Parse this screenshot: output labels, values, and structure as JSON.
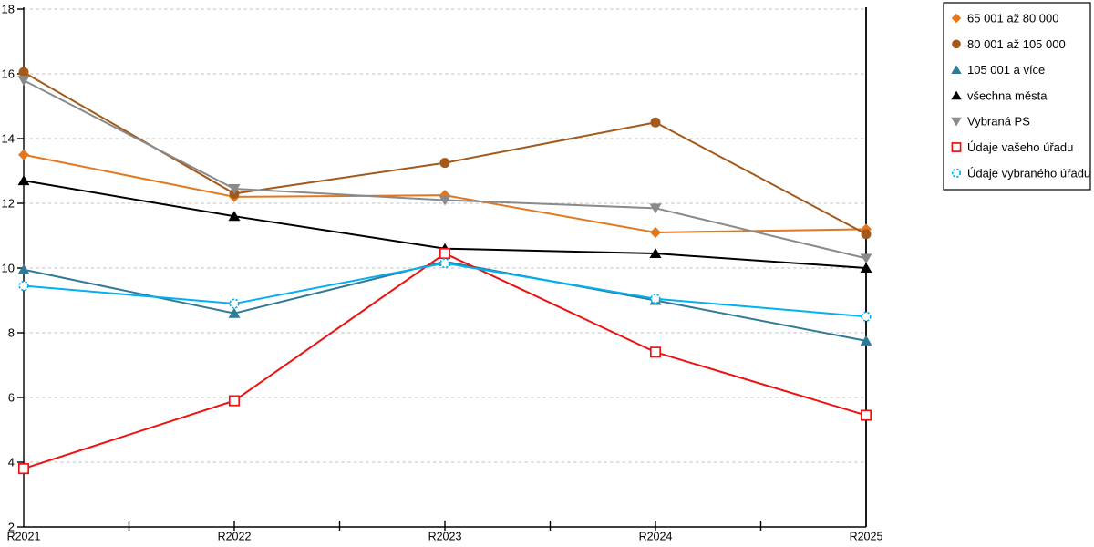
{
  "chart_data": {
    "type": "line",
    "title": "",
    "xlabel": "",
    "ylabel": "",
    "categories": [
      "R2021",
      "R2022",
      "R2023",
      "R2024",
      "R2025"
    ],
    "series": [
      {
        "name": "65 001 až 80 000",
        "color": "#E2771E",
        "marker": "diamond",
        "values": [
          13.5,
          12.2,
          12.25,
          11.1,
          11.2
        ]
      },
      {
        "name": "80 001 až 105 000",
        "color": "#A3591A",
        "marker": "circle",
        "values": [
          16.05,
          12.3,
          13.25,
          14.5,
          11.05
        ]
      },
      {
        "name": "105 001 a více",
        "color": "#317A96",
        "marker": "triangle-up",
        "values": [
          9.95,
          8.6,
          10.2,
          9.0,
          7.75
        ]
      },
      {
        "name": "všechna města",
        "color": "#000000",
        "marker": "triangle-up",
        "values": [
          12.7,
          11.6,
          10.6,
          10.45,
          10.0
        ]
      },
      {
        "name": "Vybraná PS",
        "color": "#8A8A8A",
        "marker": "triangle-down",
        "values": [
          15.8,
          12.45,
          12.1,
          11.85,
          10.3
        ]
      },
      {
        "name": "Údaje vašeho úřadu",
        "color": "#EE1111",
        "marker": "square-open",
        "values": [
          3.8,
          5.9,
          10.45,
          7.4,
          5.45
        ]
      },
      {
        "name": "Údaje vybraného úřadu",
        "color": "#00B0F0",
        "marker": "circle-open",
        "values": [
          9.45,
          8.9,
          10.15,
          9.05,
          8.5
        ]
      }
    ],
    "ylim": [
      2,
      18
    ],
    "yticks": [
      18,
      16,
      14,
      12,
      10,
      8,
      6,
      4,
      2
    ],
    "grid": "horizontal-dashed",
    "gridline_color": "#C0C0C0",
    "axis_color": "#000000",
    "legend_position": "right",
    "legend_border_color": "#000000"
  }
}
